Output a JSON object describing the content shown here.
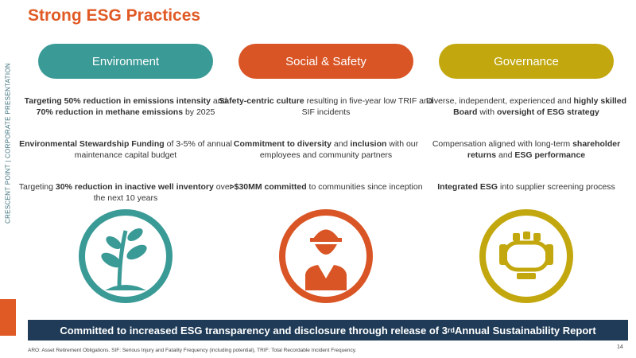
{
  "title": "Strong ESG Practices",
  "sidebar": "CRESCENT POINT | CORPORATE PRESENTATION",
  "columns": [
    {
      "heading": "Environment",
      "color": "#3a9a96",
      "items": [
        [
          {
            "text": "Targeting 50% reduction in emissions intensity",
            "bold": true
          },
          {
            "text": " and "
          },
          {
            "text": "70% reduction in methane emissions",
            "bold": true
          },
          {
            "text": " by 2025"
          }
        ],
        [
          {
            "text": "Environmental Stewardship Funding",
            "bold": true
          },
          {
            "text": " of 3-5% of annual maintenance capital budget"
          }
        ],
        [
          {
            "text": "Targeting "
          },
          {
            "text": "30% reduction in inactive well inventory",
            "bold": true
          },
          {
            "text": " over the next 10 years"
          }
        ]
      ]
    },
    {
      "heading": "Social & Safety",
      "color": "#d95525",
      "items": [
        [
          {
            "text": "Safety-centric culture",
            "bold": true
          },
          {
            "text": " resulting in five-year low TRIF and SIF incidents"
          }
        ],
        [
          {
            "text": "Commitment to diversity",
            "bold": true
          },
          {
            "text": " and "
          },
          {
            "text": "inclusion",
            "bold": true
          },
          {
            "text": " with our employees and community partners"
          }
        ],
        [
          {
            "text": ">$30MM committed",
            "bold": true
          },
          {
            "text": " to communities since inception"
          }
        ]
      ]
    },
    {
      "heading": "Governance",
      "color": "#c2a80e",
      "items": [
        [
          {
            "text": "Diverse, independent, experienced and "
          },
          {
            "text": "highly skilled Board",
            "bold": true
          },
          {
            "text": " with "
          },
          {
            "text": "oversight of ESG strategy",
            "bold": true
          }
        ],
        [
          {
            "text": "Compensation aligned with long-term "
          },
          {
            "text": "shareholder returns",
            "bold": true
          },
          {
            "text": " and "
          },
          {
            "text": "ESG performance",
            "bold": true
          }
        ],
        [
          {
            "text": "Integrated ESG",
            "bold": true
          },
          {
            "text": " into supplier screening process"
          }
        ]
      ]
    }
  ],
  "banner": [
    {
      "text": "Committed to increased ESG transparency and disclosure through release of 3"
    },
    {
      "text": "rd",
      "sup": true
    },
    {
      "text": " Annual Sustainability Report"
    }
  ],
  "footnote": "ARO: Asset Retirement Obligations. SIF: Serious Injury and Fatality Frequency (including potential), TRIF: Total Recordable Incident Frequency.",
  "page_number": "14"
}
